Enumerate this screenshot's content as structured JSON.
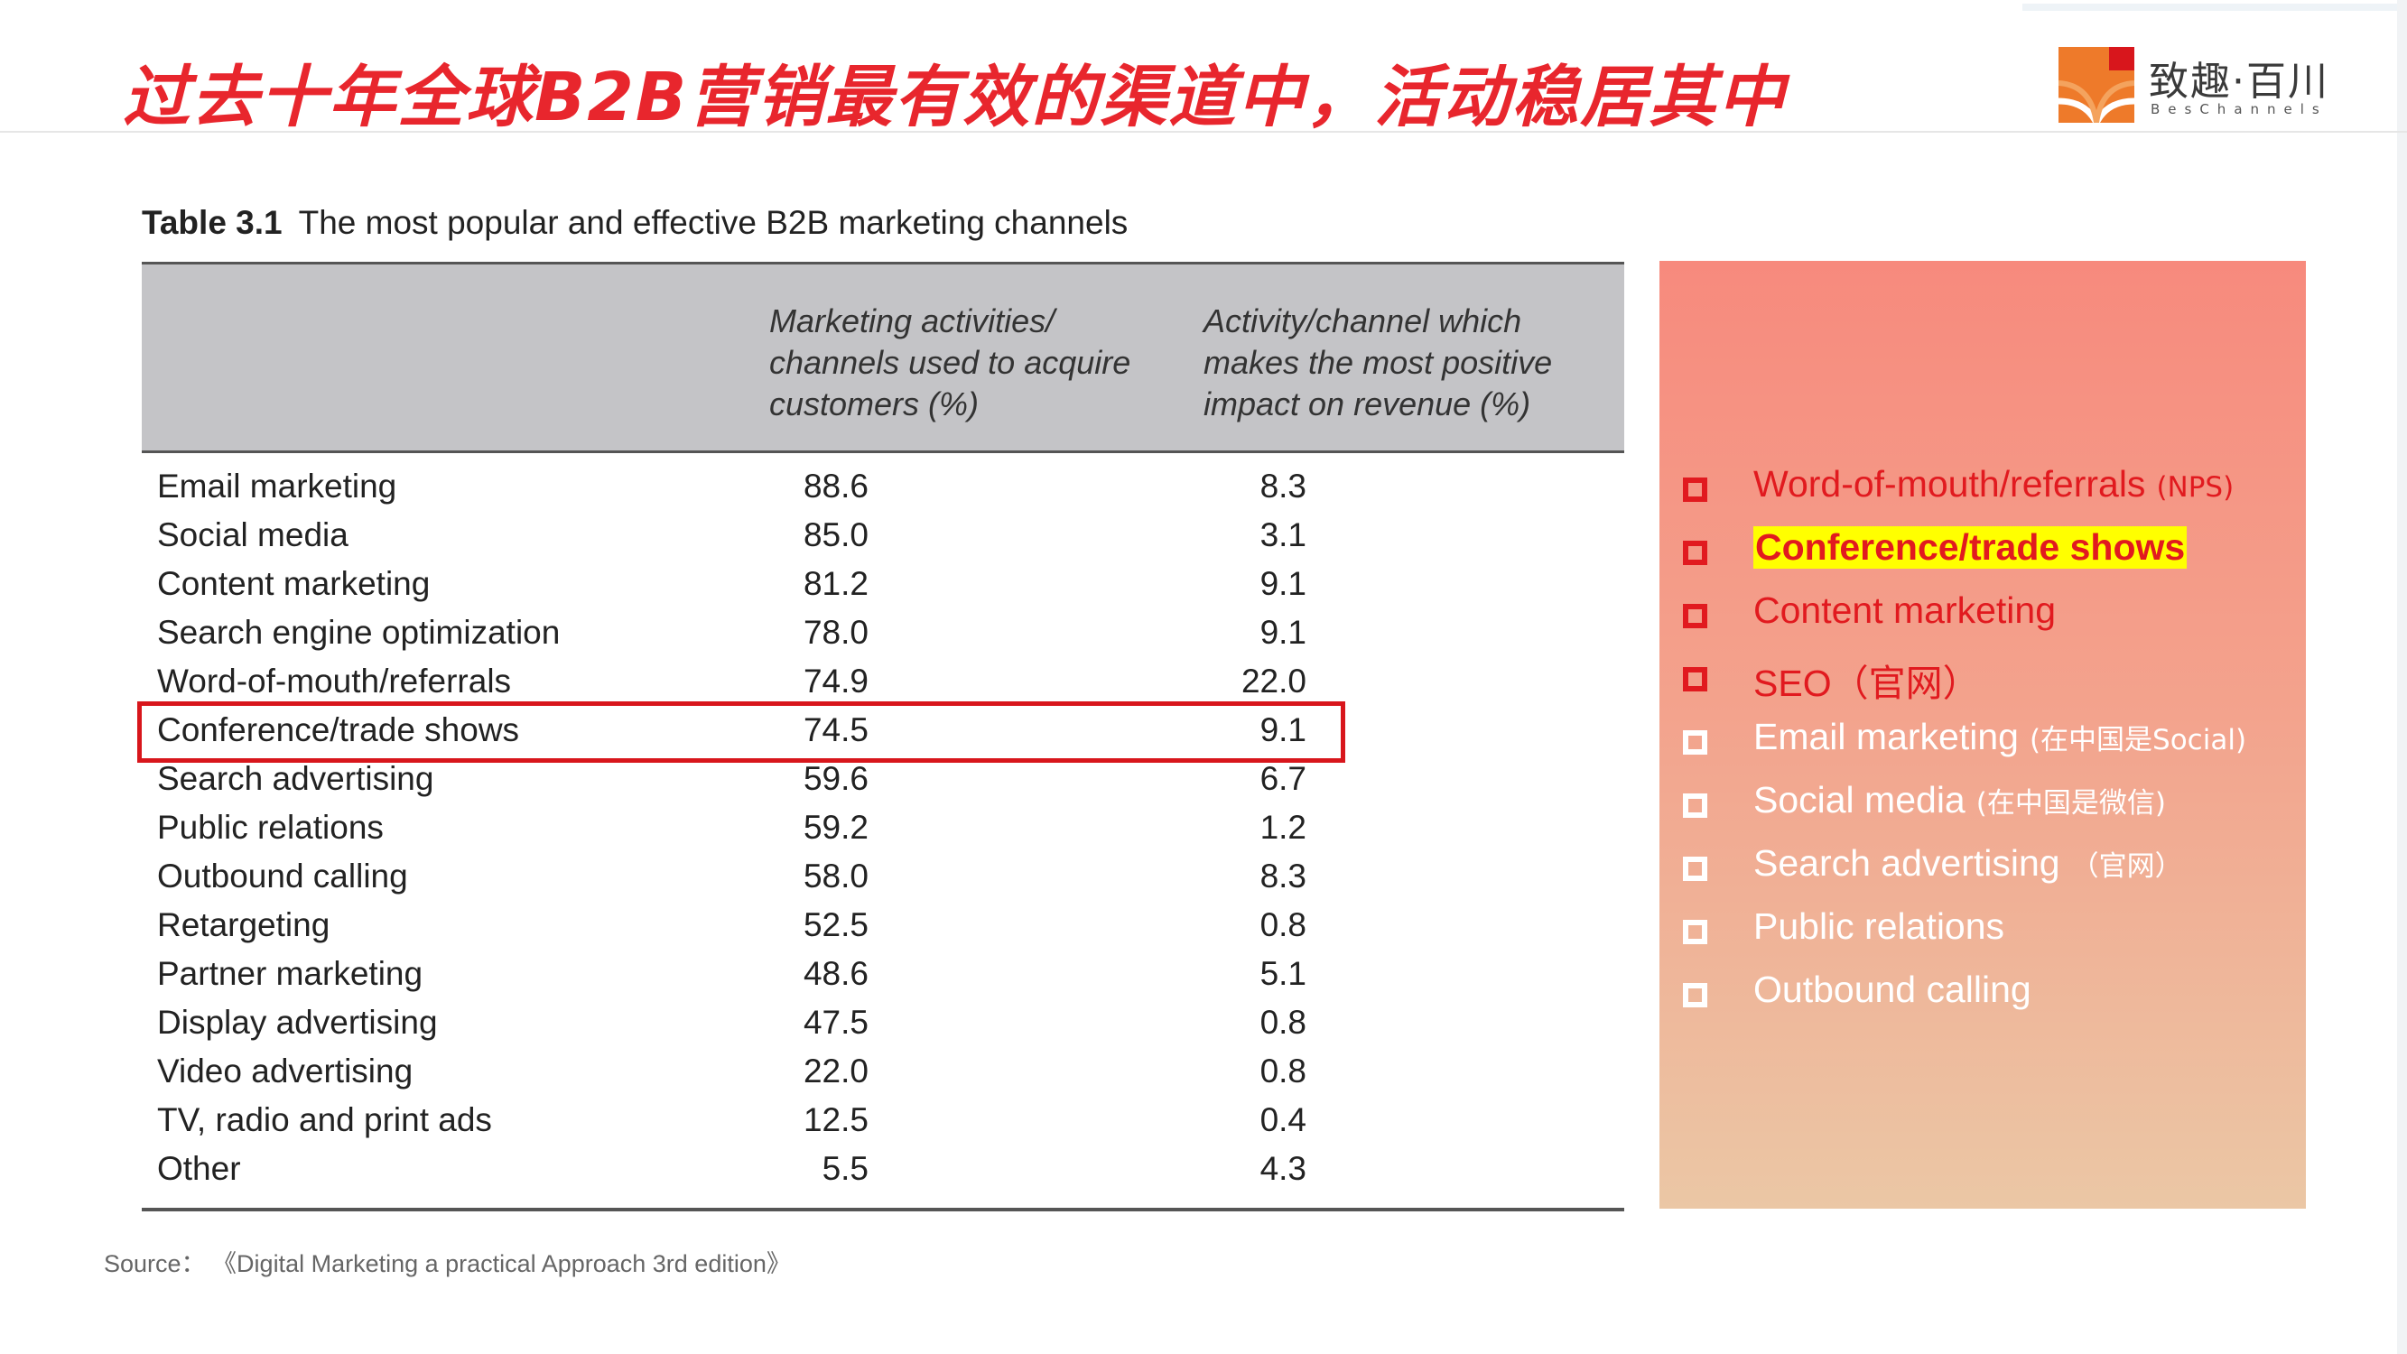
{
  "slide": {
    "title": "过去十年全球B2B营销最有效的渠道中，活动稳居其中",
    "logo_cn": "致趣·百川",
    "logo_en": "BesChannels",
    "colors": {
      "title_red": "#e8262d",
      "highlight_yellow": "#ffff00",
      "box_red": "#d8161c"
    }
  },
  "table": {
    "caption_label": "Table 3.1",
    "caption_text": "The most popular and effective B2B marketing channels",
    "headers": [
      "",
      "Marketing activities/\nchannels used to acquire\ncustomers (%)",
      "Activity/channel which\nmakes the most positive\nimpact on revenue (%)"
    ],
    "rows": [
      {
        "name": "Email marketing",
        "used": "88.6",
        "impact": "8.3"
      },
      {
        "name": "Social media",
        "used": "85.0",
        "impact": "3.1"
      },
      {
        "name": "Content marketing",
        "used": "81.2",
        "impact": "9.1"
      },
      {
        "name": "Search engine optimization",
        "used": "78.0",
        "impact": "9.1"
      },
      {
        "name": "Word-of-mouth/referrals",
        "used": "74.9",
        "impact": "22.0"
      },
      {
        "name": "Conference/trade shows",
        "used": "74.5",
        "impact": "9.1"
      },
      {
        "name": "Search advertising",
        "used": "59.6",
        "impact": "6.7"
      },
      {
        "name": "Public relations",
        "used": "59.2",
        "impact": "1.2"
      },
      {
        "name": "Outbound calling",
        "used": "58.0",
        "impact": "8.3"
      },
      {
        "name": "Retargeting",
        "used": "52.5",
        "impact": "0.8"
      },
      {
        "name": "Partner marketing",
        "used": "48.6",
        "impact": "5.1"
      },
      {
        "name": "Display advertising",
        "used": "47.5",
        "impact": "0.8"
      },
      {
        "name": "Video advertising",
        "used": "22.0",
        "impact": "0.8"
      },
      {
        "name": "TV, radio and print ads",
        "used": "12.5",
        "impact": "0.4"
      },
      {
        "name": "Other",
        "used": "5.5",
        "impact": "4.3"
      }
    ]
  },
  "source": "Source： 《Digital Marketing a practical Approach 3rd edition》",
  "panel": {
    "items": [
      {
        "label": "Word-of-mouth/referrals",
        "note": "(NPS)",
        "style": "red"
      },
      {
        "label": "Conference/trade shows",
        "note": "",
        "style": "highlight"
      },
      {
        "label": "Content marketing",
        "note": "",
        "style": "red"
      },
      {
        "label": "SEO（官网）",
        "note": "",
        "style": "red"
      },
      {
        "label": "Email marketing",
        "note": "(在中国是Social)",
        "style": "white"
      },
      {
        "label": "Social media",
        "note": "(在中国是微信)",
        "style": "white"
      },
      {
        "label": "Search advertising",
        "note": "（官网）",
        "style": "white"
      },
      {
        "label": "Public relations",
        "note": "",
        "style": "white"
      },
      {
        "label": "Outbound calling",
        "note": "",
        "style": "white"
      }
    ]
  }
}
